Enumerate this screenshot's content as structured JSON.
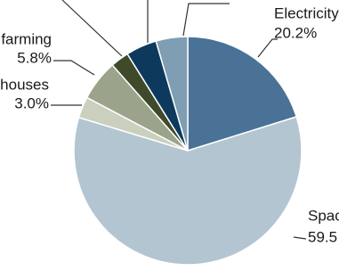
{
  "chart_data": {
    "type": "pie",
    "categories": [
      "Electricity",
      "Spac",
      "houses",
      "farming",
      null,
      null,
      null
    ],
    "values": [
      20.2,
      59.5,
      3.0,
      5.8,
      2.6,
      4.4,
      4.5
    ],
    "value_labels": [
      "20.2%",
      "59.5",
      "3.0%",
      "5.8%",
      null,
      null,
      null
    ],
    "colors": [
      "#4a7297",
      "#b3c5d1",
      "#c9d0bd",
      "#9ba38a",
      "#3f4a2a",
      "#0d3a5c",
      "#7f9db3"
    ]
  }
}
